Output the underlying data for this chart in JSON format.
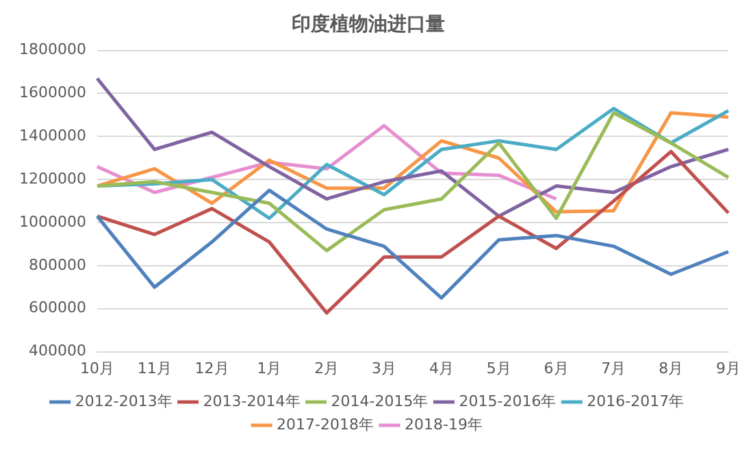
{
  "chart_data": {
    "type": "line",
    "title": "印度植物油进口量",
    "categories": [
      "10月",
      "11月",
      "12月",
      "1月",
      "2月",
      "3月",
      "4月",
      "5月",
      "6月",
      "7月",
      "8月",
      "9月"
    ],
    "series": [
      {
        "name": "2012-2013年",
        "color": "#4f81bd",
        "values": [
          1030000,
          700000,
          910000,
          1150000,
          970000,
          890000,
          650000,
          920000,
          940000,
          890000,
          760000,
          865000
        ]
      },
      {
        "name": "2013-2014年",
        "color": "#c0504d",
        "values": [
          1030000,
          945000,
          1065000,
          910000,
          580000,
          840000,
          840000,
          1030000,
          880000,
          1100000,
          1330000,
          1045000
        ]
      },
      {
        "name": "2014-2015年",
        "color": "#9bbb59",
        "values": [
          1170000,
          1190000,
          1140000,
          1090000,
          870000,
          1060000,
          1110000,
          1370000,
          1020000,
          1510000,
          1370000,
          1210000
        ]
      },
      {
        "name": "2015-2016年",
        "color": "#8064a2",
        "values": [
          1670000,
          1340000,
          1420000,
          1260000,
          1110000,
          1190000,
          1240000,
          1030000,
          1170000,
          1140000,
          1260000,
          1340000
        ]
      },
      {
        "name": "2016-2017年",
        "color": "#4bacc6",
        "values": [
          1170000,
          1180000,
          1200000,
          1020000,
          1270000,
          1130000,
          1340000,
          1380000,
          1340000,
          1530000,
          1370000,
          1520000
        ]
      },
      {
        "name": "2017-2018年",
        "color": "#f79646",
        "values": [
          1170000,
          1250000,
          1090000,
          1290000,
          1160000,
          1160000,
          1380000,
          1300000,
          1050000,
          1055000,
          1510000,
          1490000
        ]
      },
      {
        "name": "2018-19年",
        "color": "#e68fd0",
        "values": [
          1260000,
          1140000,
          1210000,
          1280000,
          1250000,
          1450000,
          1230000,
          1220000,
          1110000,
          null,
          null,
          null
        ]
      }
    ],
    "ylim": [
      400000,
      1800000
    ],
    "yticks": [
      400000,
      600000,
      800000,
      1000000,
      1200000,
      1400000,
      1600000,
      1800000
    ],
    "grid": "y",
    "legend": "bottom",
    "marker": "none",
    "line_style": "solid"
  }
}
